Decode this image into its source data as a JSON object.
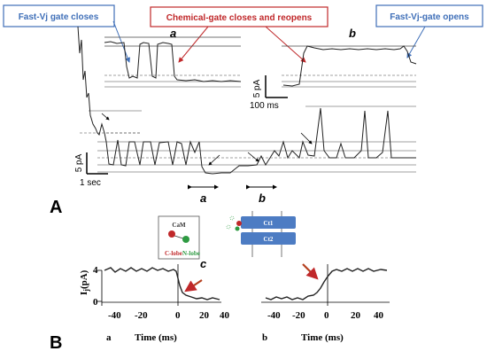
{
  "panel_a": {
    "letter": "A",
    "callouts": {
      "fast_vj_closes": "Fast-Vj gate closes",
      "chemical_gate": "Chemical-gate closes and reopens",
      "fast_vj_opens": "Fast-Vj-gate opens"
    },
    "inset_a_label": "a",
    "inset_b_label": "b",
    "main_a_label": "a",
    "main_b_label": "b",
    "scale_inset_current": "5 pA",
    "scale_inset_time": "100 ms",
    "scale_main_current": "5 pA",
    "scale_main_time": "1 sec"
  },
  "panel_b": {
    "letter": "B",
    "sub_a": "a",
    "sub_b": "b",
    "sub_c": "c",
    "y_label": "I",
    "y_label_sub": "j",
    "y_label_unit": "(pA)",
    "x_label": "Time (ms)",
    "x_ticks": [
      "-40",
      "-20",
      "0",
      "20",
      "40"
    ],
    "y_ticks": [
      "4",
      "0"
    ],
    "diagram": {
      "cam": "CaM",
      "c_lobe": "C-lobe",
      "n_lobe": "N-lobe",
      "ct1": "Ct1",
      "ct2": "Ct2"
    }
  },
  "colors": {
    "callout_border": "#3f6fb8",
    "callout_text_blue": "#3f6fb8",
    "callout_text_red": "#c0282a",
    "callout_border_red": "#c0282a",
    "arrow_red": "#b5401f",
    "trace": "#222222",
    "ct_box": "#4d7cc3"
  }
}
